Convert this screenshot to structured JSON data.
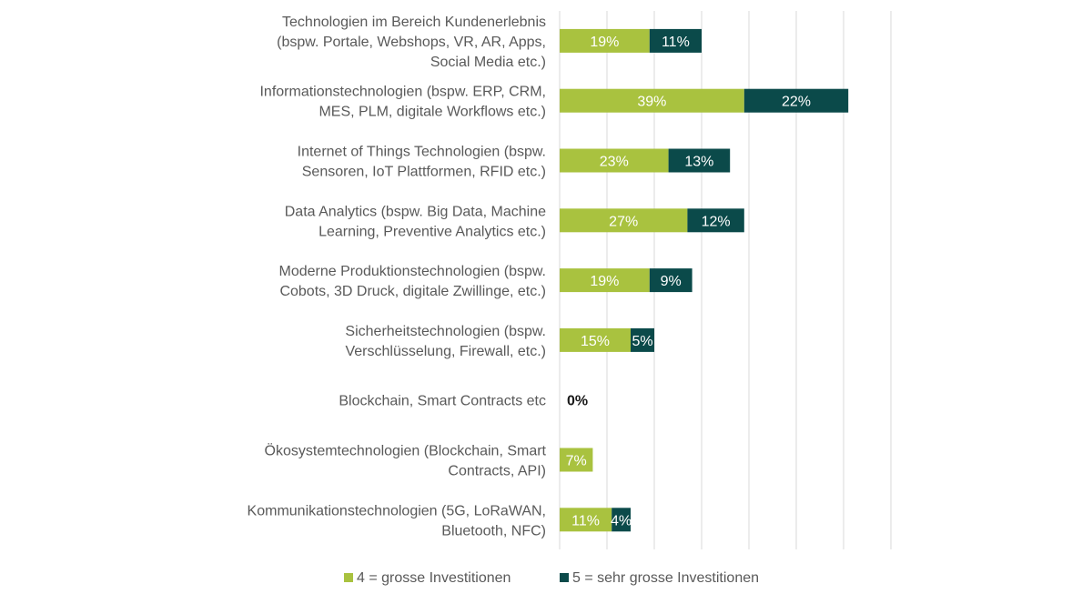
{
  "chart_data": {
    "type": "bar",
    "orientation": "horizontal",
    "stacked": true,
    "categories": [
      [
        "Technologien im Bereich Kundenerlebnis",
        "(bspw. Portale, Webshops, VR, AR, Apps,",
        "Social Media etc.)"
      ],
      [
        "Informationstechnologien (bspw. ERP, CRM,",
        "MES, PLM, digitale Workflows etc.)"
      ],
      [
        "Internet of Things Technologien (bspw.",
        "Sensoren, IoT Plattformen, RFID etc.)"
      ],
      [
        "Data Analytics (bspw. Big Data, Machine",
        "Learning, Preventive Analytics etc.)"
      ],
      [
        "Moderne Produktionstechnologien (bspw.",
        "Cobots, 3D Druck, digitale Zwillinge, etc.)"
      ],
      [
        "Sicherheitstechnologien (bspw.",
        "Verschlüsselung, Firewall, etc.)"
      ],
      [
        "Blockchain, Smart Contracts etc"
      ],
      [
        "Ökosystemtechnologien (Blockchain, Smart",
        "Contracts, API)"
      ],
      [
        "Kommunikationstechnologien (5G, LoRaWAN,",
        "Bluetooth, NFC)"
      ]
    ],
    "series": [
      {
        "name": "4 = grosse Investitionen",
        "color": "#a9c23f",
        "values": [
          19,
          39,
          23,
          27,
          19,
          15,
          null,
          7,
          11
        ],
        "labels": [
          "19%",
          "39%",
          "23%",
          "27%",
          "19%",
          "15%",
          "",
          "7%",
          "11%"
        ]
      },
      {
        "name": "5 = sehr grosse Investitionen",
        "color": "#0b4a4a",
        "values": [
          11,
          22,
          13,
          12,
          9,
          5,
          null,
          null,
          4
        ],
        "labels": [
          "11%",
          "22%",
          "13%",
          "12%",
          "9%",
          "5%",
          "",
          "",
          "4%"
        ]
      }
    ],
    "extra_labels": [
      {
        "category_index": 6,
        "text": "0%"
      }
    ],
    "xlim": [
      0,
      70
    ],
    "grid": true,
    "legend": "bottom-center",
    "title": "",
    "xlabel": "",
    "ylabel": ""
  }
}
